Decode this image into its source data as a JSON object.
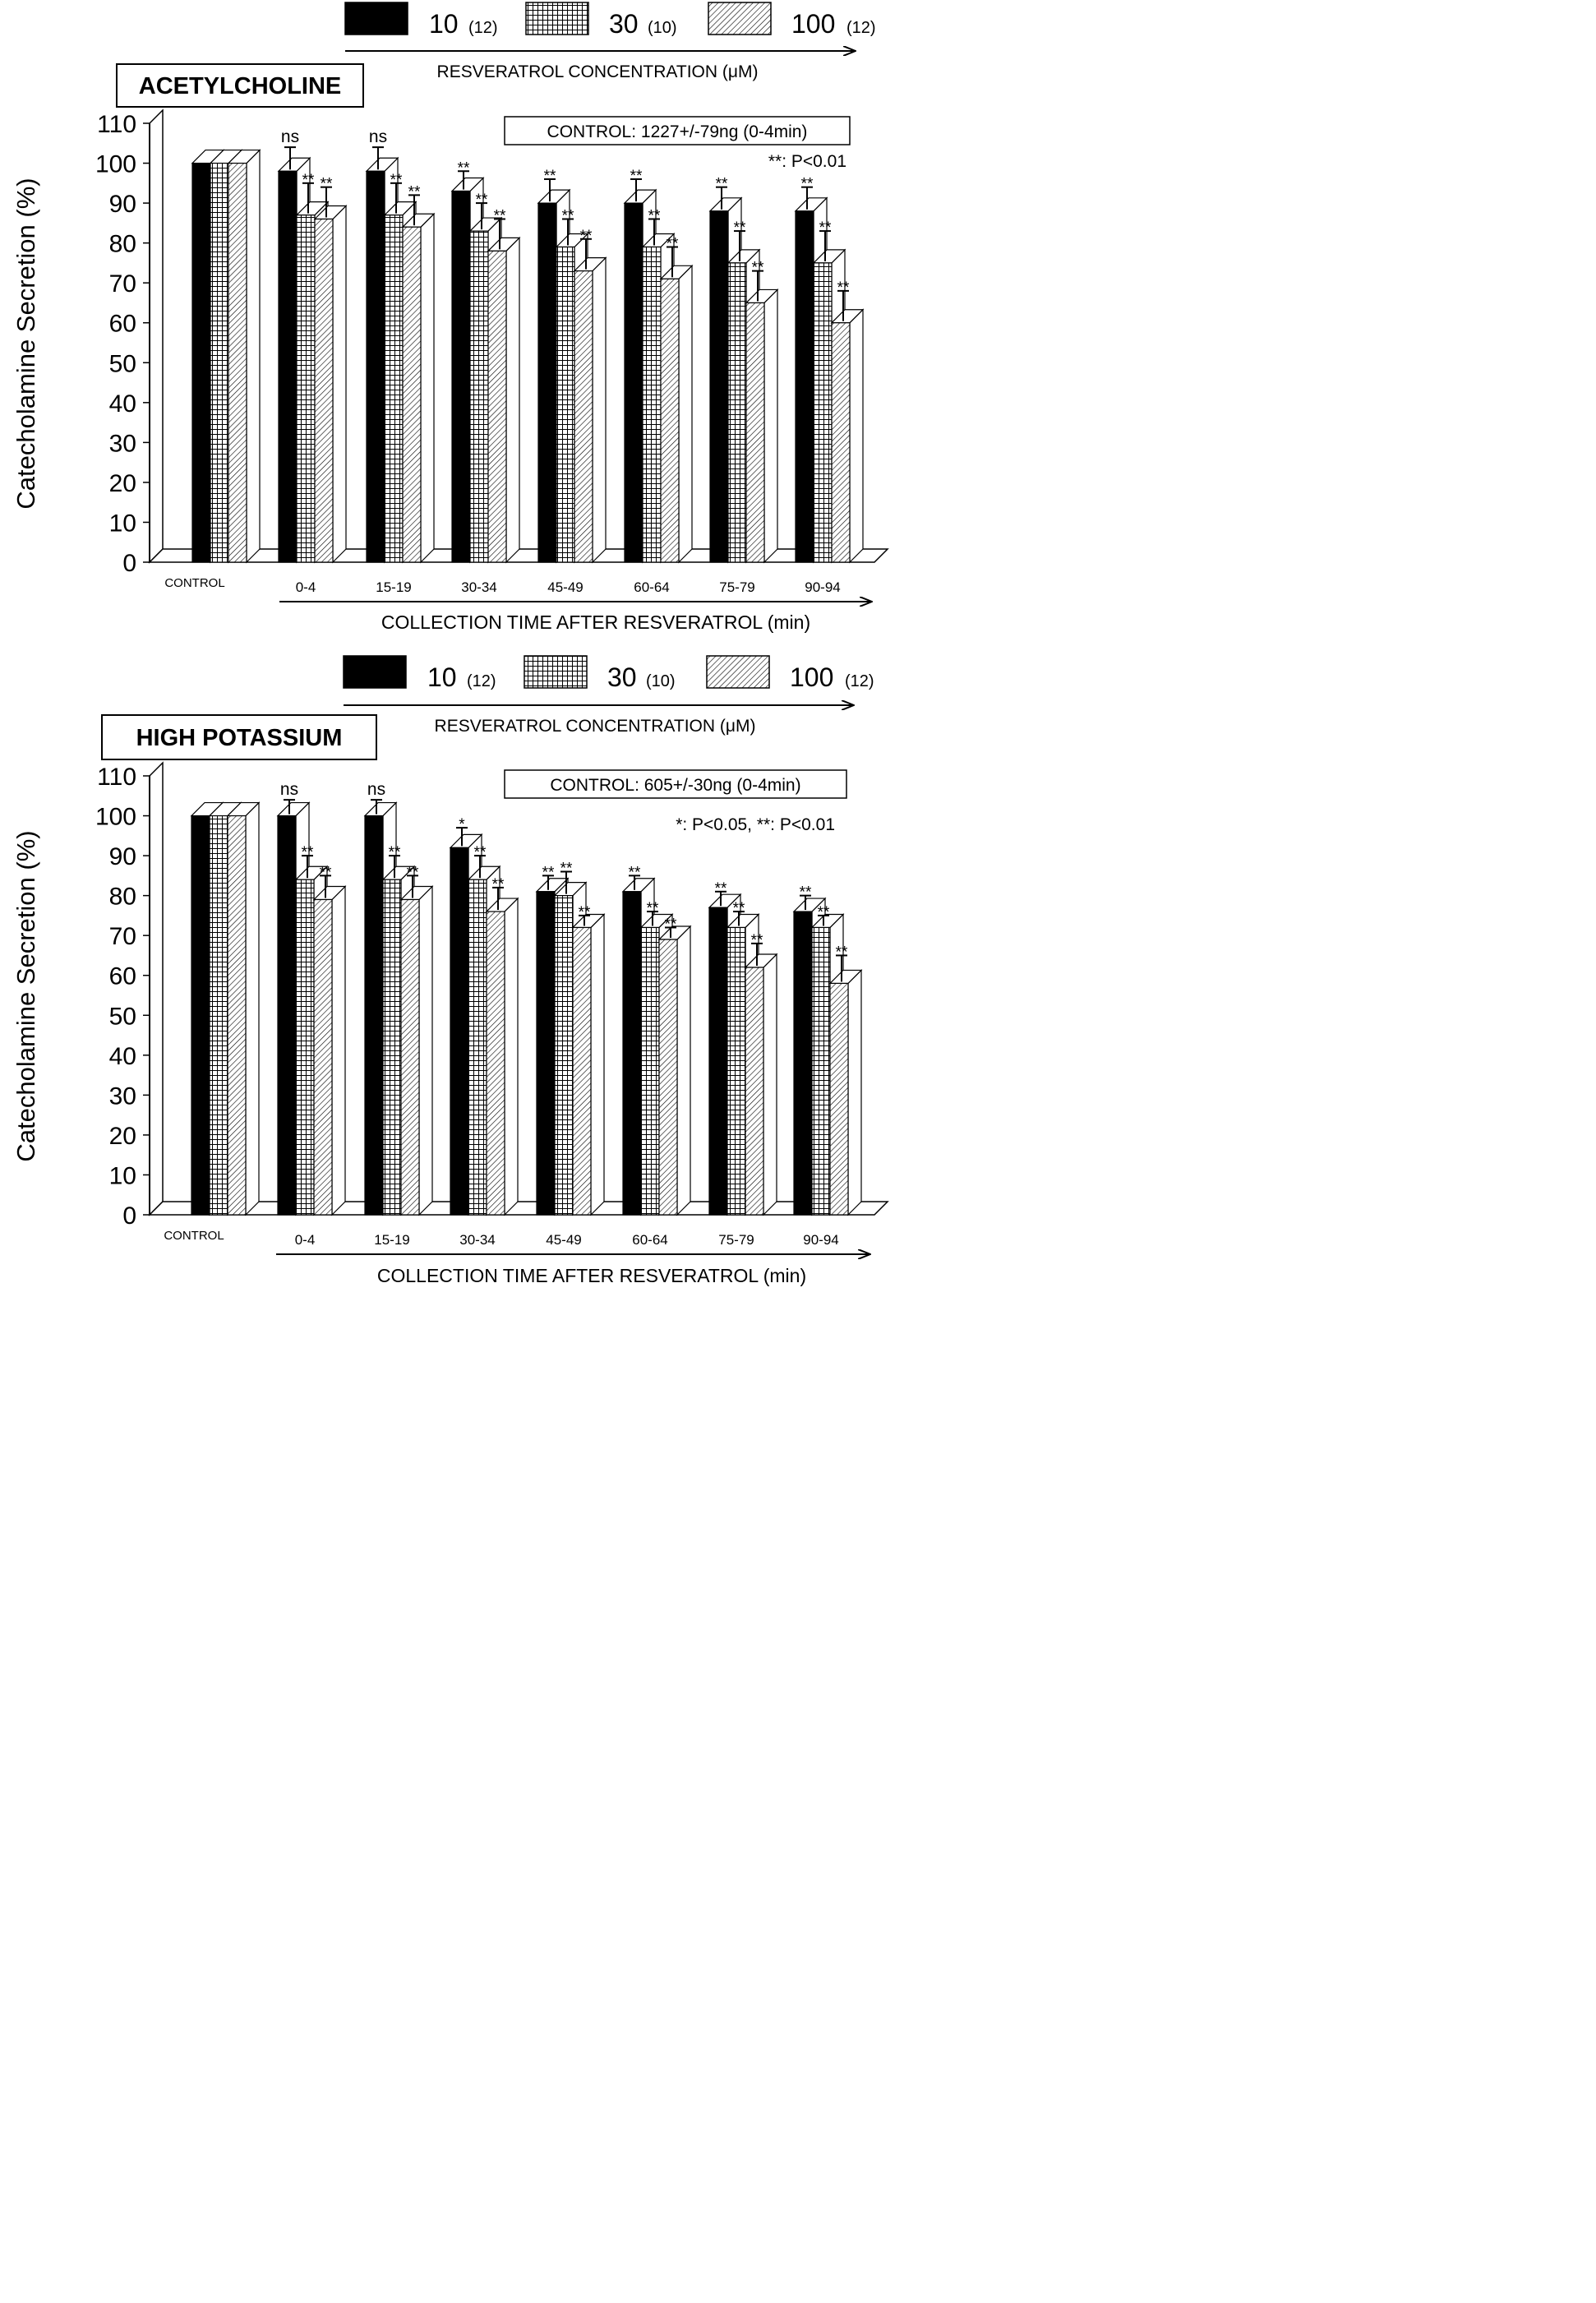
{
  "chart_data": [
    {
      "type": "bar",
      "title": "ACETYLCHOLINE",
      "ylabel": "Catecholamine Secretion (%)",
      "xlabel": "COLLECTION TIME AFTER RESVERATROL (min)",
      "ylim": [
        0,
        110
      ],
      "yticks": [
        "0",
        "10",
        "20",
        "30",
        "40",
        "50",
        "60",
        "70",
        "80",
        "90",
        "100",
        "110"
      ],
      "categories": [
        "CONTROL",
        "0-4",
        "15-19",
        "30-34",
        "45-49",
        "60-64",
        "75-79",
        "90-94"
      ],
      "legend_title": "RESVERATROL CONCENTRATION (μM)",
      "control_note": "CONTROL: 1227+/-79ng (0-4min)",
      "significance_note": "**: P<0.01",
      "series": [
        {
          "name": "10",
          "n": "(12)",
          "pattern": "solid",
          "values": [
            100,
            98,
            98,
            93,
            90,
            90,
            88,
            88
          ],
          "errors": [
            0,
            6,
            6,
            5,
            6,
            6,
            6,
            6
          ],
          "marks": [
            "",
            "ns",
            "ns",
            "**",
            "**",
            "**",
            "**",
            "**"
          ]
        },
        {
          "name": "30",
          "n": "(10)",
          "pattern": "grid",
          "values": [
            100,
            87,
            87,
            83,
            79,
            79,
            75,
            75
          ],
          "errors": [
            0,
            8,
            8,
            7,
            7,
            7,
            8,
            8
          ],
          "marks": [
            "",
            "**",
            "**",
            "**",
            "**",
            "**",
            "**",
            "**"
          ]
        },
        {
          "name": "100",
          "n": "(12)",
          "pattern": "hatch",
          "values": [
            100,
            86,
            84,
            78,
            73,
            71,
            65,
            60
          ],
          "errors": [
            0,
            8,
            8,
            8,
            8,
            8,
            8,
            8
          ],
          "marks": [
            "",
            "**",
            "**",
            "**",
            "**",
            "**",
            "**",
            "**"
          ]
        }
      ]
    },
    {
      "type": "bar",
      "title": "HIGH POTASSIUM",
      "ylabel": "Catecholamine Secretion (%)",
      "xlabel": "COLLECTION TIME AFTER RESVERATROL (min)",
      "ylim": [
        0,
        110
      ],
      "yticks": [
        "0",
        "10",
        "20",
        "30",
        "40",
        "50",
        "60",
        "70",
        "80",
        "90",
        "100",
        "110"
      ],
      "categories": [
        "CONTROL",
        "0-4",
        "15-19",
        "30-34",
        "45-49",
        "60-64",
        "75-79",
        "90-94"
      ],
      "legend_title": "RESVERATROL CONCENTRATION (μM)",
      "control_note": "CONTROL: 605+/-30ng (0-4min)",
      "significance_note": "*: P<0.05, **: P<0.01",
      "series": [
        {
          "name": "10",
          "n": "(12)",
          "pattern": "solid",
          "values": [
            100,
            100,
            100,
            92,
            81,
            81,
            77,
            76
          ],
          "errors": [
            0,
            4,
            4,
            5,
            4,
            4,
            4,
            4
          ],
          "marks": [
            "",
            "ns",
            "ns",
            "*",
            "**",
            "**",
            "**",
            "**"
          ]
        },
        {
          "name": "30",
          "n": "(10)",
          "pattern": "grid",
          "values": [
            100,
            84,
            84,
            84,
            80,
            72,
            72,
            72
          ],
          "errors": [
            0,
            6,
            6,
            6,
            6,
            4,
            4,
            3
          ],
          "marks": [
            "",
            "**",
            "**",
            "**",
            "**",
            "**",
            "**",
            "**"
          ]
        },
        {
          "name": "100",
          "n": "(12)",
          "pattern": "hatch",
          "values": [
            100,
            79,
            79,
            76,
            72,
            69,
            62,
            58
          ],
          "errors": [
            0,
            6,
            6,
            6,
            3,
            3,
            6,
            7
          ],
          "marks": [
            "",
            "**",
            "**",
            "**",
            "**",
            "**",
            "**",
            "**"
          ]
        }
      ]
    }
  ]
}
